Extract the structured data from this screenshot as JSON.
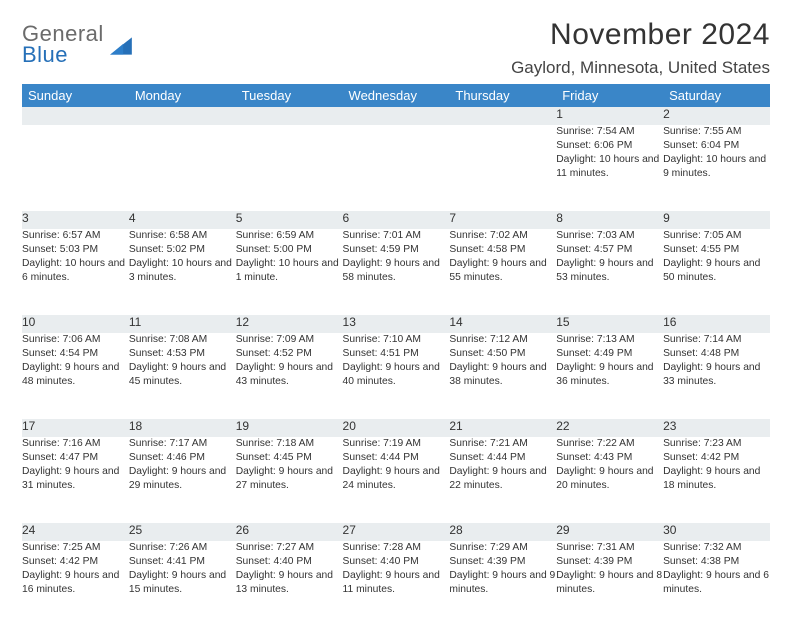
{
  "branding": {
    "logo_top": "General",
    "logo_bottom": "Blue",
    "triangle_color": "#2670b8"
  },
  "header": {
    "title": "November 2024",
    "location": "Gaylord, Minnesota, United States"
  },
  "colors": {
    "header_bg": "#3a86c8",
    "header_text": "#ffffff",
    "daynum_bg": "#e9edef",
    "row_border": "#3a6a95",
    "body_text": "#333333"
  },
  "weekdays": [
    "Sunday",
    "Monday",
    "Tuesday",
    "Wednesday",
    "Thursday",
    "Friday",
    "Saturday"
  ],
  "weeks": [
    [
      {
        "day": "",
        "sunrise": "",
        "sunset": "",
        "daylight": ""
      },
      {
        "day": "",
        "sunrise": "",
        "sunset": "",
        "daylight": ""
      },
      {
        "day": "",
        "sunrise": "",
        "sunset": "",
        "daylight": ""
      },
      {
        "day": "",
        "sunrise": "",
        "sunset": "",
        "daylight": ""
      },
      {
        "day": "",
        "sunrise": "",
        "sunset": "",
        "daylight": ""
      },
      {
        "day": "1",
        "sunrise": "Sunrise: 7:54 AM",
        "sunset": "Sunset: 6:06 PM",
        "daylight": "Daylight: 10 hours and 11 minutes."
      },
      {
        "day": "2",
        "sunrise": "Sunrise: 7:55 AM",
        "sunset": "Sunset: 6:04 PM",
        "daylight": "Daylight: 10 hours and 9 minutes."
      }
    ],
    [
      {
        "day": "3",
        "sunrise": "Sunrise: 6:57 AM",
        "sunset": "Sunset: 5:03 PM",
        "daylight": "Daylight: 10 hours and 6 minutes."
      },
      {
        "day": "4",
        "sunrise": "Sunrise: 6:58 AM",
        "sunset": "Sunset: 5:02 PM",
        "daylight": "Daylight: 10 hours and 3 minutes."
      },
      {
        "day": "5",
        "sunrise": "Sunrise: 6:59 AM",
        "sunset": "Sunset: 5:00 PM",
        "daylight": "Daylight: 10 hours and 1 minute."
      },
      {
        "day": "6",
        "sunrise": "Sunrise: 7:01 AM",
        "sunset": "Sunset: 4:59 PM",
        "daylight": "Daylight: 9 hours and 58 minutes."
      },
      {
        "day": "7",
        "sunrise": "Sunrise: 7:02 AM",
        "sunset": "Sunset: 4:58 PM",
        "daylight": "Daylight: 9 hours and 55 minutes."
      },
      {
        "day": "8",
        "sunrise": "Sunrise: 7:03 AM",
        "sunset": "Sunset: 4:57 PM",
        "daylight": "Daylight: 9 hours and 53 minutes."
      },
      {
        "day": "9",
        "sunrise": "Sunrise: 7:05 AM",
        "sunset": "Sunset: 4:55 PM",
        "daylight": "Daylight: 9 hours and 50 minutes."
      }
    ],
    [
      {
        "day": "10",
        "sunrise": "Sunrise: 7:06 AM",
        "sunset": "Sunset: 4:54 PM",
        "daylight": "Daylight: 9 hours and 48 minutes."
      },
      {
        "day": "11",
        "sunrise": "Sunrise: 7:08 AM",
        "sunset": "Sunset: 4:53 PM",
        "daylight": "Daylight: 9 hours and 45 minutes."
      },
      {
        "day": "12",
        "sunrise": "Sunrise: 7:09 AM",
        "sunset": "Sunset: 4:52 PM",
        "daylight": "Daylight: 9 hours and 43 minutes."
      },
      {
        "day": "13",
        "sunrise": "Sunrise: 7:10 AM",
        "sunset": "Sunset: 4:51 PM",
        "daylight": "Daylight: 9 hours and 40 minutes."
      },
      {
        "day": "14",
        "sunrise": "Sunrise: 7:12 AM",
        "sunset": "Sunset: 4:50 PM",
        "daylight": "Daylight: 9 hours and 38 minutes."
      },
      {
        "day": "15",
        "sunrise": "Sunrise: 7:13 AM",
        "sunset": "Sunset: 4:49 PM",
        "daylight": "Daylight: 9 hours and 36 minutes."
      },
      {
        "day": "16",
        "sunrise": "Sunrise: 7:14 AM",
        "sunset": "Sunset: 4:48 PM",
        "daylight": "Daylight: 9 hours and 33 minutes."
      }
    ],
    [
      {
        "day": "17",
        "sunrise": "Sunrise: 7:16 AM",
        "sunset": "Sunset: 4:47 PM",
        "daylight": "Daylight: 9 hours and 31 minutes."
      },
      {
        "day": "18",
        "sunrise": "Sunrise: 7:17 AM",
        "sunset": "Sunset: 4:46 PM",
        "daylight": "Daylight: 9 hours and 29 minutes."
      },
      {
        "day": "19",
        "sunrise": "Sunrise: 7:18 AM",
        "sunset": "Sunset: 4:45 PM",
        "daylight": "Daylight: 9 hours and 27 minutes."
      },
      {
        "day": "20",
        "sunrise": "Sunrise: 7:19 AM",
        "sunset": "Sunset: 4:44 PM",
        "daylight": "Daylight: 9 hours and 24 minutes."
      },
      {
        "day": "21",
        "sunrise": "Sunrise: 7:21 AM",
        "sunset": "Sunset: 4:44 PM",
        "daylight": "Daylight: 9 hours and 22 minutes."
      },
      {
        "day": "22",
        "sunrise": "Sunrise: 7:22 AM",
        "sunset": "Sunset: 4:43 PM",
        "daylight": "Daylight: 9 hours and 20 minutes."
      },
      {
        "day": "23",
        "sunrise": "Sunrise: 7:23 AM",
        "sunset": "Sunset: 4:42 PM",
        "daylight": "Daylight: 9 hours and 18 minutes."
      }
    ],
    [
      {
        "day": "24",
        "sunrise": "Sunrise: 7:25 AM",
        "sunset": "Sunset: 4:42 PM",
        "daylight": "Daylight: 9 hours and 16 minutes."
      },
      {
        "day": "25",
        "sunrise": "Sunrise: 7:26 AM",
        "sunset": "Sunset: 4:41 PM",
        "daylight": "Daylight: 9 hours and 15 minutes."
      },
      {
        "day": "26",
        "sunrise": "Sunrise: 7:27 AM",
        "sunset": "Sunset: 4:40 PM",
        "daylight": "Daylight: 9 hours and 13 minutes."
      },
      {
        "day": "27",
        "sunrise": "Sunrise: 7:28 AM",
        "sunset": "Sunset: 4:40 PM",
        "daylight": "Daylight: 9 hours and 11 minutes."
      },
      {
        "day": "28",
        "sunrise": "Sunrise: 7:29 AM",
        "sunset": "Sunset: 4:39 PM",
        "daylight": "Daylight: 9 hours and 9 minutes."
      },
      {
        "day": "29",
        "sunrise": "Sunrise: 7:31 AM",
        "sunset": "Sunset: 4:39 PM",
        "daylight": "Daylight: 9 hours and 8 minutes."
      },
      {
        "day": "30",
        "sunrise": "Sunrise: 7:32 AM",
        "sunset": "Sunset: 4:38 PM",
        "daylight": "Daylight: 9 hours and 6 minutes."
      }
    ]
  ]
}
